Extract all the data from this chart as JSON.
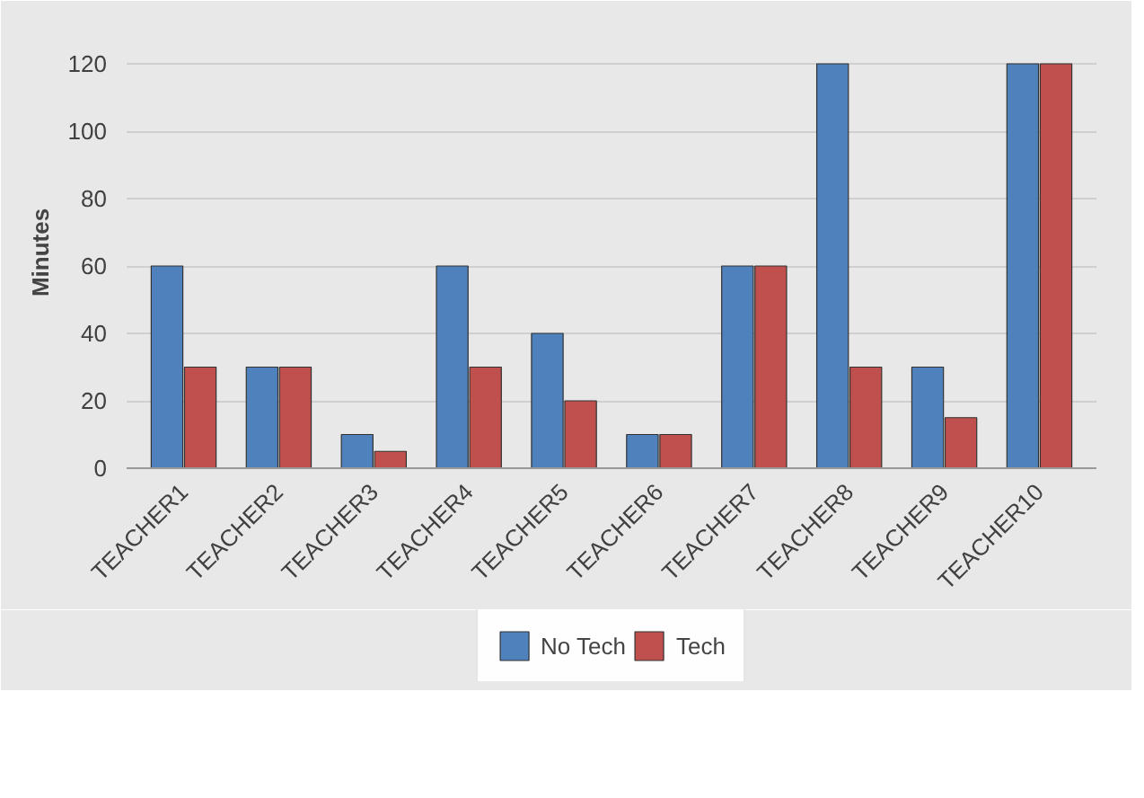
{
  "chart_data": {
    "type": "bar",
    "ylabel": "Minutes",
    "categories": [
      "TEACHER1",
      "TEACHER2",
      "TEACHER3",
      "TEACHER4",
      "TEACHER5",
      "TEACHER6",
      "TEACHER7",
      "TEACHER8",
      "TEACHER9",
      "TEACHER10"
    ],
    "series": [
      {
        "name": "No Tech",
        "color": "#4f81bd",
        "values": [
          60,
          30,
          10,
          60,
          40,
          10,
          60,
          120,
          30,
          120
        ]
      },
      {
        "name": "Tech",
        "color": "#c0504d",
        "values": [
          30,
          30,
          5,
          30,
          20,
          10,
          60,
          30,
          15,
          120
        ]
      }
    ],
    "ylim": [
      0,
      128
    ],
    "yticks": [
      0,
      20,
      40,
      60,
      80,
      100,
      120
    ],
    "grid": "y",
    "legend": "bottom"
  }
}
